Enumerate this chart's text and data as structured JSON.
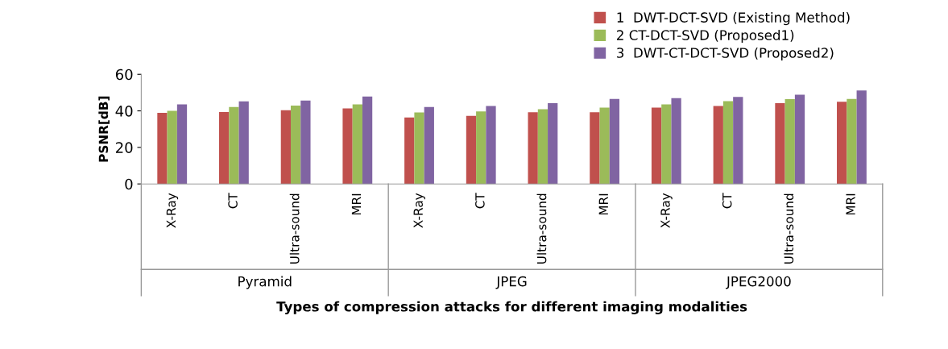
{
  "chart_data": {
    "type": "bar",
    "ylabel": "PSNR[dB]",
    "xlabel": "Types of compression attacks for different imaging modalities",
    "categories": [
      "X-Ray",
      "CT",
      "Ultra-sound",
      "MRI",
      "X-Ray",
      "CT",
      "Ultra-sound",
      "MRI",
      "X-Ray",
      "CT",
      "Ultra-sound",
      "MRI"
    ],
    "annotations": [
      "Pyramid",
      "JPEG",
      "JPEG2000"
    ],
    "series": [
      {
        "name": "1  DWT-DCT-SVD (Existing Method)",
        "color": "#c0504d",
        "values": [
          38.9,
          39.4,
          40.3,
          41.4,
          36.4,
          37.3,
          39.2,
          39.2,
          41.8,
          42.7,
          44.2,
          45.0
        ]
      },
      {
        "name": "2 CT-DCT-SVD (Proposed1)",
        "color": "#9bbb59",
        "values": [
          40.0,
          42.1,
          42.9,
          43.6,
          39.1,
          39.7,
          40.9,
          41.8,
          43.5,
          45.3,
          46.4,
          46.5
        ]
      },
      {
        "name": "3  DWT-CT-DCT-SVD (Proposed2)",
        "color": "#8064a2",
        "values": [
          43.6,
          45.2,
          45.6,
          47.9,
          42.1,
          42.7,
          44.2,
          46.5,
          47.0,
          47.6,
          48.8,
          51.2
        ]
      }
    ],
    "ylim": [
      0,
      60
    ],
    "yticks": [
      0,
      20,
      40,
      60
    ],
    "grid": false,
    "legend": "top right"
  }
}
